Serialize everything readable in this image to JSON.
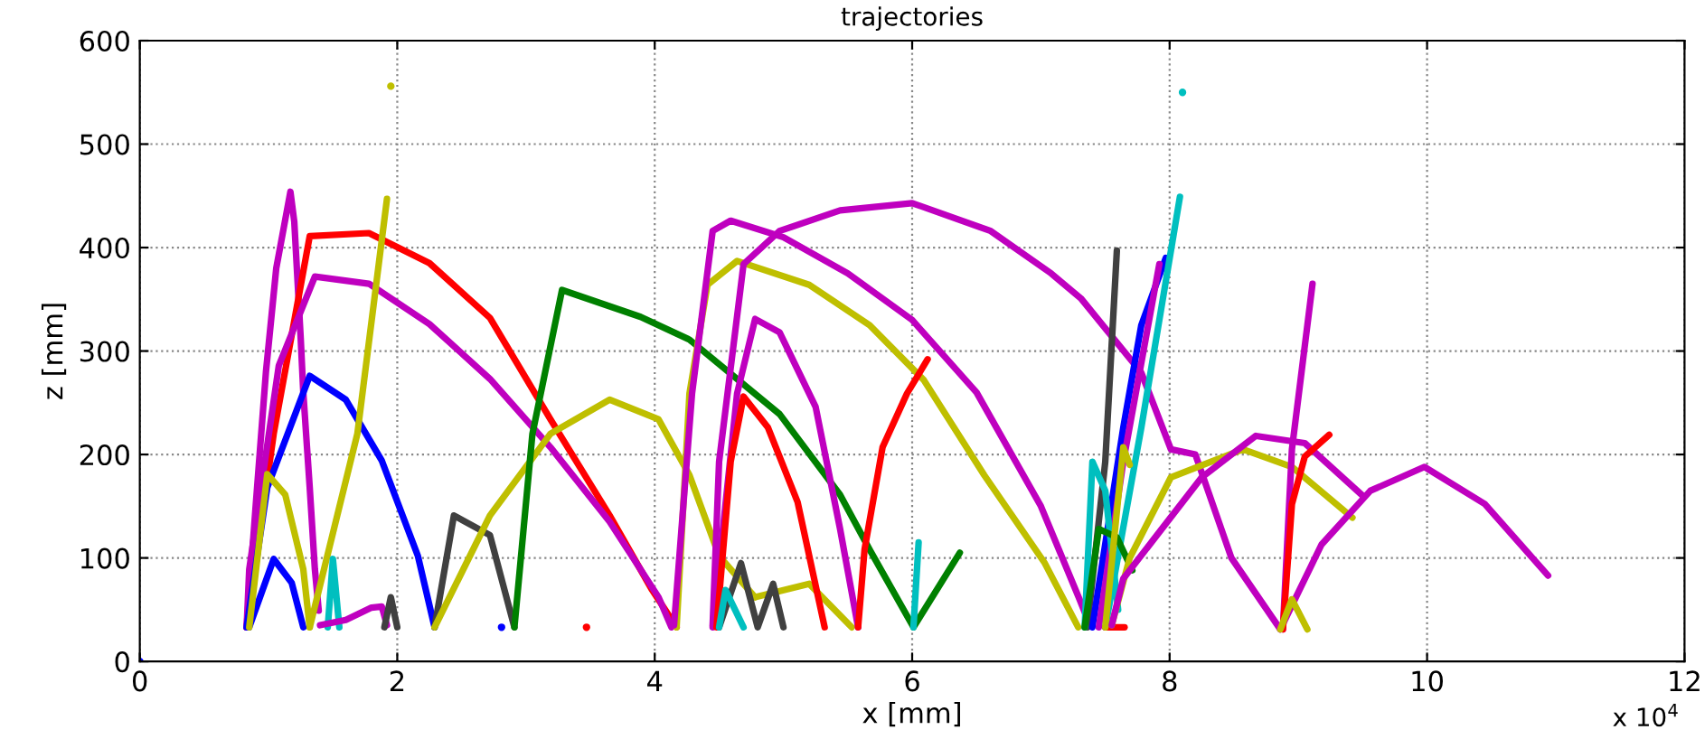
{
  "chart_data": {
    "type": "line",
    "title": "trajectories",
    "xlabel": "x [mm]",
    "ylabel": "z [mm]",
    "annotations": [
      "x 10$^{4}$"
    ],
    "xlim": [
      0,
      12
    ],
    "ylim": [
      0,
      600
    ],
    "xticks": [
      0,
      2,
      4,
      6,
      8,
      10,
      12
    ],
    "yticks": [
      0,
      100,
      200,
      300,
      400,
      500,
      600
    ],
    "grid": true,
    "line_style": "solid",
    "marker": "none",
    "legend": false,
    "series": [
      {
        "color": "#bf00bf",
        "x": [
          0.83,
          0.9,
          0.98,
          1.06,
          1.17,
          1.2,
          1.25,
          1.27,
          1.32,
          1.36,
          1.39
        ],
        "values": [
          33,
          150,
          280,
          380,
          454,
          425,
          312,
          260,
          168,
          89,
          49
        ]
      },
      {
        "color": "#ff0000",
        "x": [
          0.83,
          1.04,
          1.32,
          1.78,
          2.25,
          2.72,
          3.19,
          3.65,
          3.98,
          4.17
        ],
        "values": [
          33,
          220,
          411,
          414,
          385,
          332,
          234,
          141,
          69,
          33
        ]
      },
      {
        "color": "#bf00bf",
        "x": [
          0.83,
          0.85,
          1.08,
          1.36,
          1.78,
          2.25,
          2.72,
          3.19,
          3.65,
          4.03,
          4.13
        ],
        "values": [
          33,
          89,
          286,
          372,
          365,
          326,
          273,
          207,
          135,
          62,
          33
        ]
      },
      {
        "color": "#0000ff",
        "x": [
          0.83,
          0.99,
          1.32,
          1.6,
          1.88,
          2.16,
          2.29
        ],
        "values": [
          33,
          168,
          276,
          253,
          194,
          102,
          33
        ]
      },
      {
        "color": "#0000ff",
        "x": [
          0.85,
          1.04,
          1.18,
          1.27
        ],
        "values": [
          33,
          99,
          76,
          33
        ]
      },
      {
        "color": "#bfbf00",
        "x": [
          0.85,
          0.99,
          1.13,
          1.27,
          1.32
        ],
        "values": [
          33,
          181,
          161,
          89,
          33
        ]
      },
      {
        "color": "#bfbf00",
        "x": [
          1.32,
          1.69,
          1.92
        ],
        "values": [
          33,
          220,
          447
        ]
      },
      {
        "color": "#00bfbf",
        "x": [
          1.46,
          1.5,
          1.55
        ],
        "values": [
          33,
          99,
          33
        ]
      },
      {
        "color": "#bf00bf",
        "x": [
          1.4,
          1.6,
          1.8,
          1.88,
          1.92
        ],
        "values": [
          35,
          40,
          52,
          53,
          35
        ]
      },
      {
        "color": "#404040",
        "x": [
          1.9,
          1.95,
          2.0
        ],
        "values": [
          33,
          62,
          33
        ]
      },
      {
        "color": "#404040",
        "x": [
          2.29,
          2.44,
          2.72,
          2.91
        ],
        "values": [
          33,
          141,
          122,
          33
        ]
      },
      {
        "color": "#bfbf00",
        "x": [
          2.29,
          2.72,
          3.19,
          3.65,
          4.03,
          4.27,
          4.5,
          4.78
        ],
        "values": [
          33,
          141,
          220,
          253,
          234,
          180,
          102,
          62
        ]
      },
      {
        "color": "#bfbf00",
        "x": [
          4.78,
          5.2,
          5.53
        ],
        "values": [
          62,
          75,
          33
        ]
      },
      {
        "color": "#008000",
        "x": [
          2.91,
          3.05,
          3.28,
          3.89,
          4.27,
          4.97,
          5.44,
          5.67,
          6.01,
          6.37
        ],
        "values": [
          33,
          220,
          359,
          333,
          311,
          239,
          161,
          108,
          33,
          105
        ]
      },
      {
        "color": "#bfbf00",
        "x": [
          4.17,
          4.27,
          4.41,
          4.64,
          5.2,
          5.67,
          6.09,
          6.56,
          7.03,
          7.29
        ],
        "values": [
          33,
          259,
          364,
          387,
          364,
          325,
          272,
          180,
          95,
          33
        ]
      },
      {
        "color": "#bf00bf",
        "x": [
          4.15,
          4.29,
          4.45,
          4.59,
          5.0,
          5.5,
          6.0,
          6.5,
          7.0,
          7.3,
          7.38
        ],
        "values": [
          35,
          259,
          416,
          426,
          410,
          375,
          330,
          260,
          150,
          60,
          35
        ]
      },
      {
        "color": "#bf00bf",
        "x": [
          4.45,
          4.5,
          4.69,
          4.97,
          5.44,
          6.0,
          6.61,
          7.08,
          7.31,
          7.78,
          8.01,
          8.2,
          8.48,
          8.86
        ],
        "values": [
          35,
          193,
          384,
          416,
          436,
          443,
          416,
          375,
          351,
          279,
          205,
          200,
          100,
          31
        ]
      },
      {
        "color": "#bf00bf",
        "x": [
          4.45,
          4.64,
          4.78,
          4.97,
          5.25,
          5.44,
          5.58
        ],
        "values": [
          33,
          259,
          331,
          318,
          246,
          128,
          33
        ]
      },
      {
        "color": "#ff0000",
        "x": [
          4.48,
          4.59,
          4.69,
          4.88,
          5.11,
          5.32
        ],
        "values": [
          33,
          193,
          256,
          226,
          154,
          33
        ]
      },
      {
        "color": "#ff0000",
        "x": [
          5.58,
          5.63,
          5.77,
          5.96,
          6.12
        ],
        "values": [
          33,
          108,
          207,
          259,
          292
        ]
      },
      {
        "color": "#00bfbf",
        "x": [
          6.01,
          6.05
        ],
        "values": [
          33,
          115
        ]
      },
      {
        "color": "#404040",
        "x": [
          4.5,
          4.67,
          4.8,
          4.92,
          5.0
        ],
        "values": [
          33,
          95,
          33,
          75,
          33
        ]
      },
      {
        "color": "#00bfbf",
        "x": [
          4.5,
          4.55,
          4.69
        ],
        "values": [
          33,
          69,
          33
        ]
      },
      {
        "color": "#404040",
        "x": [
          7.36,
          7.5,
          7.59
        ],
        "values": [
          33,
          193,
          397
        ]
      },
      {
        "color": "#0000ff",
        "x": [
          7.4,
          7.64,
          7.78,
          7.97
        ],
        "values": [
          33,
          226,
          325,
          390
        ]
      },
      {
        "color": "#bf00bf",
        "x": [
          7.45,
          7.64,
          7.92
        ],
        "values": [
          33,
          193,
          384
        ]
      },
      {
        "color": "#00bfbf",
        "x": [
          7.5,
          7.78,
          8.08
        ],
        "values": [
          33,
          226,
          449
        ]
      },
      {
        "color": "#00bfbf",
        "x": [
          7.34,
          7.4,
          7.5,
          7.6
        ],
        "values": [
          33,
          193,
          165,
          50
        ]
      },
      {
        "color": "#008000",
        "x": [
          7.34,
          7.45,
          7.59,
          7.71
        ],
        "values": [
          33,
          128,
          120,
          88
        ]
      },
      {
        "color": "#ff0000",
        "x": [
          7.5,
          7.65
        ],
        "values": [
          33,
          33
        ]
      },
      {
        "color": "#bfbf00",
        "x": [
          7.5,
          7.64,
          7.69
        ],
        "values": [
          33,
          207,
          190
        ]
      },
      {
        "color": "#bfbf00",
        "x": [
          7.55,
          7.69,
          8.01,
          8.57,
          8.95,
          9.42
        ],
        "values": [
          35,
          100,
          178,
          205,
          188,
          139
        ]
      },
      {
        "color": "#bf00bf",
        "x": [
          7.55,
          7.64,
          8.25,
          8.67,
          9.05,
          9.51
        ],
        "values": [
          35,
          80,
          178,
          218,
          211,
          159
        ]
      },
      {
        "color": "#bf00bf",
        "x": [
          8.86,
          9.18,
          9.56,
          9.98,
          10.45,
          10.94
        ],
        "values": [
          31,
          113,
          165,
          188,
          152,
          83
        ]
      },
      {
        "color": "#bf00bf",
        "x": [
          8.88,
          8.95,
          9.11
        ],
        "values": [
          31,
          205,
          365
        ]
      },
      {
        "color": "#ff0000",
        "x": [
          8.88,
          8.95,
          9.05,
          9.24
        ],
        "values": [
          31,
          152,
          198,
          219
        ]
      },
      {
        "color": "#bfbf00",
        "x": [
          8.86,
          8.95,
          9.07
        ],
        "values": [
          31,
          60,
          31
        ]
      },
      {
        "type": "scatter",
        "marker": "circle",
        "color": "#0000ff",
        "x": [
          0,
          2.81
        ],
        "values": [
          0,
          33
        ]
      },
      {
        "type": "scatter",
        "marker": "circle",
        "color": "#ff0000",
        "x": [
          3.47
        ],
        "values": [
          33
        ]
      },
      {
        "type": "scatter",
        "marker": "circle",
        "color": "#bfbf00",
        "x": [
          1.95
        ],
        "values": [
          556
        ]
      },
      {
        "type": "scatter",
        "marker": "circle",
        "color": "#00bfbf",
        "x": [
          8.1
        ],
        "values": [
          550
        ]
      }
    ]
  }
}
